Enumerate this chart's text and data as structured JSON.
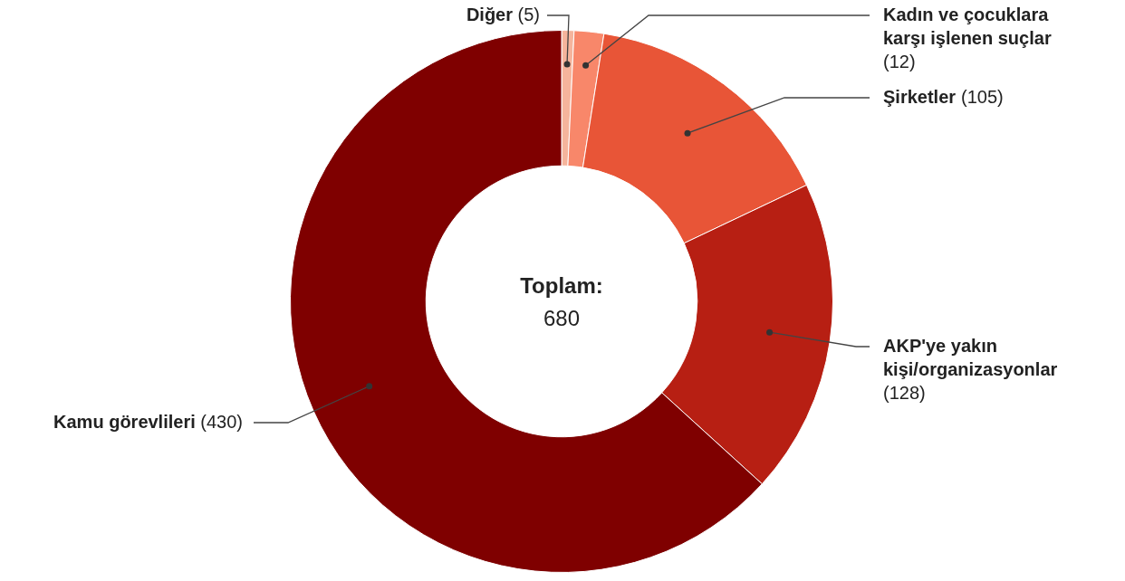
{
  "chart_data": {
    "type": "donut",
    "categories": [
      "Diğer",
      "Kadın ve çocuklara karşı işlenen suçlar",
      "Şirketler",
      "AKP'ye yakın kişi/organizasyonlar",
      "Kamu görevlileri"
    ],
    "values": [
      5,
      12,
      105,
      128,
      430
    ],
    "colors": [
      "#f5b49c",
      "#f8876a",
      "#e85537",
      "#b71f13",
      "#7f0000"
    ],
    "value_labels": [
      "(5)",
      "(12)",
      "(105)",
      "(128)",
      "(430)"
    ],
    "annotations": [
      "Toplam:",
      "680"
    ]
  }
}
